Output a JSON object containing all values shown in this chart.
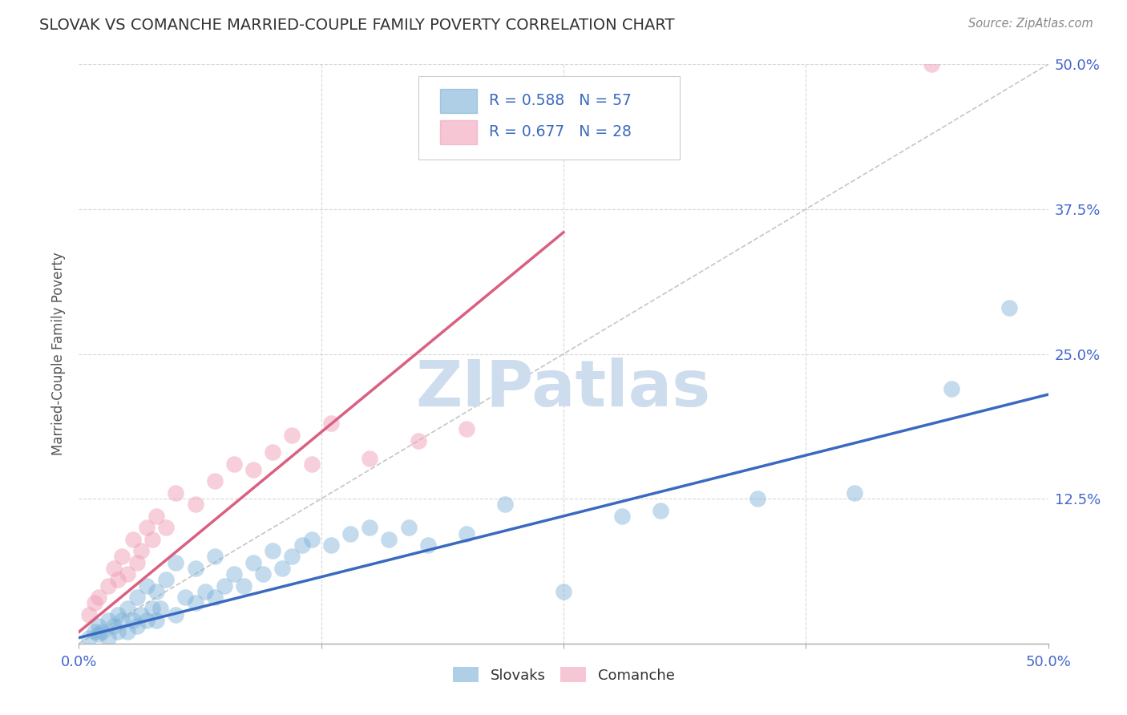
{
  "title": "SLOVAK VS COMANCHE MARRIED-COUPLE FAMILY POVERTY CORRELATION CHART",
  "source_text": "Source: ZipAtlas.com",
  "ylabel": "Married-Couple Family Poverty",
  "slovak_color": "#7ab0d8",
  "comanche_color": "#f0a0b8",
  "slovak_line_color": "#3a6abf",
  "comanche_line_color": "#d96080",
  "diagonal_line_color": "#c8c8c8",
  "watermark_text": "ZIPatlas",
  "watermark_color": "#cddded",
  "background_color": "#ffffff",
  "plot_bg_color": "#ffffff",
  "R_slovak": 0.588,
  "N_slovak": 57,
  "R_comanche": 0.677,
  "N_comanche": 28,
  "xmin": 0.0,
  "xmax": 0.5,
  "ymin": 0.0,
  "ymax": 0.5,
  "slovak_line_x0": 0.0,
  "slovak_line_y0": 0.005,
  "slovak_line_x1": 0.5,
  "slovak_line_y1": 0.215,
  "comanche_line_x0": 0.0,
  "comanche_line_y0": 0.01,
  "comanche_line_x1": 0.25,
  "comanche_line_y1": 0.355,
  "slovak_points_x": [
    0.005,
    0.008,
    0.01,
    0.01,
    0.012,
    0.015,
    0.015,
    0.018,
    0.02,
    0.02,
    0.022,
    0.025,
    0.025,
    0.028,
    0.03,
    0.03,
    0.032,
    0.035,
    0.035,
    0.038,
    0.04,
    0.04,
    0.042,
    0.045,
    0.05,
    0.05,
    0.055,
    0.06,
    0.06,
    0.065,
    0.07,
    0.07,
    0.075,
    0.08,
    0.085,
    0.09,
    0.095,
    0.1,
    0.105,
    0.11,
    0.115,
    0.12,
    0.13,
    0.14,
    0.15,
    0.16,
    0.17,
    0.18,
    0.2,
    0.22,
    0.25,
    0.28,
    0.3,
    0.35,
    0.4,
    0.45,
    0.48
  ],
  "slovak_points_y": [
    0.005,
    0.01,
    0.008,
    0.015,
    0.01,
    0.005,
    0.02,
    0.015,
    0.01,
    0.025,
    0.02,
    0.01,
    0.03,
    0.02,
    0.015,
    0.04,
    0.025,
    0.02,
    0.05,
    0.03,
    0.02,
    0.045,
    0.03,
    0.055,
    0.025,
    0.07,
    0.04,
    0.035,
    0.065,
    0.045,
    0.04,
    0.075,
    0.05,
    0.06,
    0.05,
    0.07,
    0.06,
    0.08,
    0.065,
    0.075,
    0.085,
    0.09,
    0.085,
    0.095,
    0.1,
    0.09,
    0.1,
    0.085,
    0.095,
    0.12,
    0.045,
    0.11,
    0.115,
    0.125,
    0.13,
    0.22,
    0.29
  ],
  "comanche_points_x": [
    0.005,
    0.008,
    0.01,
    0.015,
    0.018,
    0.02,
    0.022,
    0.025,
    0.028,
    0.03,
    0.032,
    0.035,
    0.038,
    0.04,
    0.045,
    0.05,
    0.06,
    0.07,
    0.08,
    0.09,
    0.1,
    0.11,
    0.12,
    0.13,
    0.15,
    0.175,
    0.2,
    0.44
  ],
  "comanche_points_y": [
    0.025,
    0.035,
    0.04,
    0.05,
    0.065,
    0.055,
    0.075,
    0.06,
    0.09,
    0.07,
    0.08,
    0.1,
    0.09,
    0.11,
    0.1,
    0.13,
    0.12,
    0.14,
    0.155,
    0.15,
    0.165,
    0.18,
    0.155,
    0.19,
    0.16,
    0.175,
    0.185,
    0.5
  ]
}
